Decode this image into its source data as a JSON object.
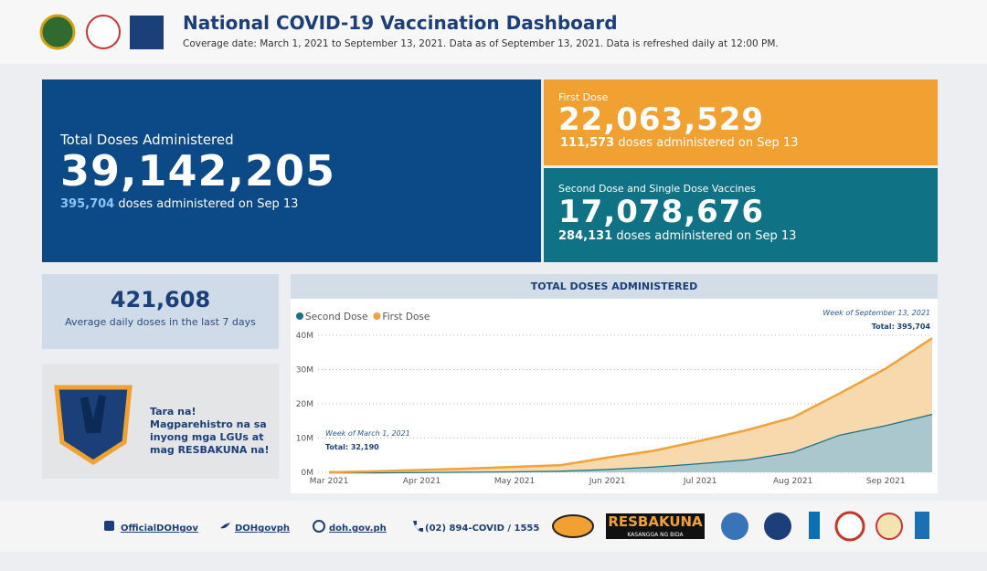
{
  "header": {
    "title": "National COVID-19 Vaccination Dashboard",
    "subtitle": "Coverage date: March 1, 2021 to September 13, 2021. Data as of September 13, 2021. Data is refreshed daily at 12:00 PM."
  },
  "total": {
    "label": "Total Doses Administered",
    "value": "39,142,205",
    "today": "395,704",
    "today_text": "doses administered on Sep 13"
  },
  "first_dose": {
    "label": "First Dose",
    "value": "22,063,529",
    "today": "111,573",
    "today_text": "doses administered on Sep 13"
  },
  "second_dose": {
    "label": "Second Dose and Single Dose Vaccines",
    "value": "17,078,676",
    "today": "284,131",
    "today_text": "doses administered on Sep 13"
  },
  "average": {
    "value": "421,608",
    "label": "Average daily doses in the last 7 days"
  },
  "promo": {
    "text": "Tara na! Magparehistro na sa inyong mga LGUs at mag RESBAKUNA na!"
  },
  "footer": {
    "links": [
      "OfficialDOHgov",
      "DOHgovph",
      "doh.gov.ph",
      "(02) 894-COVID / 1555"
    ],
    "banner": "RESBAKUNA",
    "banner_sub": "KASANGGA NG BIDA"
  },
  "chart_data": {
    "type": "area",
    "stacked": true,
    "title": "TOTAL DOSES ADMINISTERED",
    "categories": [
      "Mar 2021",
      null,
      "Apr 2021",
      null,
      "May 2021",
      null,
      "Jun 2021",
      null,
      "Jul 2021",
      null,
      "Aug 2021",
      null,
      "Sep 2021",
      null
    ],
    "series": [
      {
        "name": "Second Dose",
        "color": "#1a7383",
        "fill": "#a9c7cc",
        "values": [
          0,
          0,
          100000,
          200000,
          300000,
          500000,
          1000000,
          1700000,
          2700000,
          3800000,
          6000000,
          11000000,
          13800000,
          17078676
        ]
      },
      {
        "name": "First Dose",
        "color": "#f0a33c",
        "fill": "#f8d9ad",
        "values": [
          30000,
          300000,
          600000,
          900000,
          1300000,
          1600000,
          3300000,
          4600000,
          6500000,
          8500000,
          10000000,
          12000000,
          16500000,
          22063529
        ]
      }
    ],
    "ylim": [
      0,
      40000000
    ],
    "yticks": [
      {
        "value": 0,
        "label": "0M"
      },
      {
        "value": 10000000,
        "label": "10M"
      },
      {
        "value": 20000000,
        "label": "20M"
      },
      {
        "value": 30000000,
        "label": "30M"
      },
      {
        "value": 40000000,
        "label": "40M"
      }
    ],
    "grid": true,
    "annotations": {
      "start_week": "Week of March 1, 2021",
      "start_total": "Total: 32,190",
      "end_week": "Week of September 13, 2021",
      "end_total": "Total: 395,704"
    }
  }
}
